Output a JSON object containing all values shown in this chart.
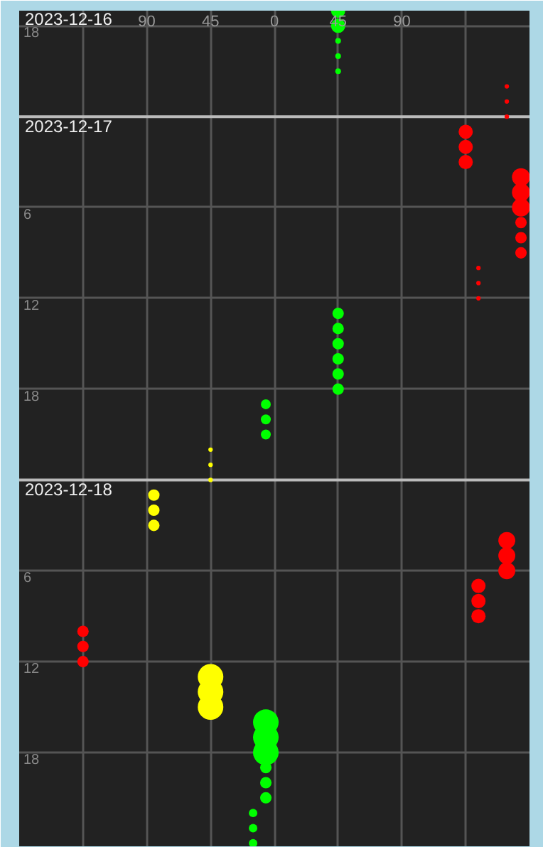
{
  "chart_data": {
    "type": "bubble",
    "orientation": "horizontal",
    "annotations": [
      "2023-12-16"
    ],
    "xlim": [
      -180,
      180
    ],
    "ylim": [
      "2023-12-19T00:12",
      "2023-12-16T17:00"
    ],
    "xticks": [
      {
        "value": -135,
        "label": null
      },
      {
        "value": -90,
        "label": "90"
      },
      {
        "value": -45,
        "label": "45"
      },
      0,
      45,
      {
        "value": 90,
        "label": "90"
      },
      {
        "value": 135,
        "label": null
      }
    ],
    "yticks": [
      {
        "value": "2023-12-16T18:00",
        "label": "18"
      },
      {
        "value": "2023-12-17T06:00",
        "label": "6"
      },
      {
        "value": "2023-12-17T12:00",
        "label": "12"
      },
      {
        "value": "2023-12-17T18:00",
        "label": "18"
      },
      {
        "value": "2023-12-18T06:00",
        "label": "6"
      },
      {
        "value": "2023-12-18T12:00",
        "label": "12"
      },
      {
        "value": "2023-12-18T18:00",
        "label": "18"
      }
    ],
    "ref_lines": [
      {
        "axis": "y",
        "value": "2023-12-17",
        "label": "2023-12-17",
        "color": "#bbbbbb"
      },
      {
        "axis": "y",
        "value": "2023-12-18",
        "label": "2023-12-18",
        "color": "#bbbbbb"
      }
    ],
    "grid": true,
    "series": [
      {
        "color": "#ff0000",
        "values": [
          164,
          164,
          164,
          135,
          135,
          135,
          174,
          174,
          174,
          174,
          174,
          174,
          144,
          144,
          144,
          164,
          164,
          164,
          144,
          144,
          144,
          -135,
          -135,
          -135
        ],
        "x": [
          "2023-12-16T22:00",
          "2023-12-16T23:00",
          "2023-12-17T00:00",
          "2023-12-17T01:00",
          "2023-12-17T02:00",
          "2023-12-17T03:00",
          "2023-12-17T04:00",
          "2023-12-17T05:00",
          "2023-12-17T06:00",
          "2023-12-17T07:00",
          "2023-12-17T08:00",
          "2023-12-17T09:00",
          "2023-12-17T10:00",
          "2023-12-17T11:00",
          "2023-12-17T12:00",
          "2023-12-18T04:00",
          "2023-12-18T05:00",
          "2023-12-18T06:00",
          "2023-12-18T07:00",
          "2023-12-18T08:00",
          "2023-12-18T09:00",
          "2023-12-18T10:00",
          "2023-12-18T11:00",
          "2023-12-18T12:00"
        ],
        "sizes": [
          0.03,
          0.03,
          0.03,
          0.31,
          0.31,
          0.31,
          0.5,
          0.5,
          0.5,
          0.2,
          0.2,
          0.2,
          0.03,
          0.03,
          0.03,
          0.44,
          0.44,
          0.44,
          0.31,
          0.31,
          0.31,
          0.2,
          0.2,
          0.2
        ]
      },
      {
        "color": "#ffff00",
        "values": [
          -45,
          -45,
          -45,
          -85,
          -85,
          -85,
          -45,
          -45,
          -45
        ],
        "x": [
          "2023-12-17T22:00",
          "2023-12-17T23:00",
          "2023-12-18T00:00",
          "2023-12-18T01:00",
          "2023-12-18T02:00",
          "2023-12-18T03:00",
          "2023-12-18T13:00",
          "2023-12-18T14:00",
          "2023-12-18T15:00"
        ],
        "sizes": [
          0.03,
          0.03,
          0.03,
          0.2,
          0.2,
          0.2,
          1,
          1,
          1
        ]
      },
      {
        "color": "#00ff00",
        "values": [
          45,
          45,
          45,
          45,
          45,
          45,
          45,
          45,
          45,
          45,
          45,
          -6,
          -6,
          -6,
          -6,
          -6,
          -6,
          -6,
          -6,
          -6,
          -15,
          -15,
          -15
        ],
        "x": [
          "2023-12-16T17:00",
          "2023-12-16T18:00",
          "2023-12-16T19:00",
          "2023-12-16T20:00",
          "2023-12-16T21:00",
          "2023-12-17T13:00",
          "2023-12-17T14:00",
          "2023-12-17T15:00",
          "2023-12-17T16:00",
          "2023-12-17T17:00",
          "2023-12-17T18:00",
          "2023-12-17T19:00",
          "2023-12-17T20:00",
          "2023-12-17T21:00",
          "2023-12-18T16:00",
          "2023-12-18T17:00",
          "2023-12-18T18:00",
          "2023-12-18T19:00",
          "2023-12-18T20:00",
          "2023-12-18T21:00",
          "2023-12-18T22:00",
          "2023-12-18T23:00",
          "2023-12-19T00:00"
        ],
        "sizes": [
          0.31,
          0.31,
          0.05,
          0.05,
          0.05,
          0.2,
          0.2,
          0.2,
          0.2,
          0.2,
          0.2,
          0.15,
          0.15,
          0.15,
          1,
          1,
          1,
          0.2,
          0.2,
          0.2,
          0.11,
          0.11,
          0.11
        ]
      }
    ]
  }
}
